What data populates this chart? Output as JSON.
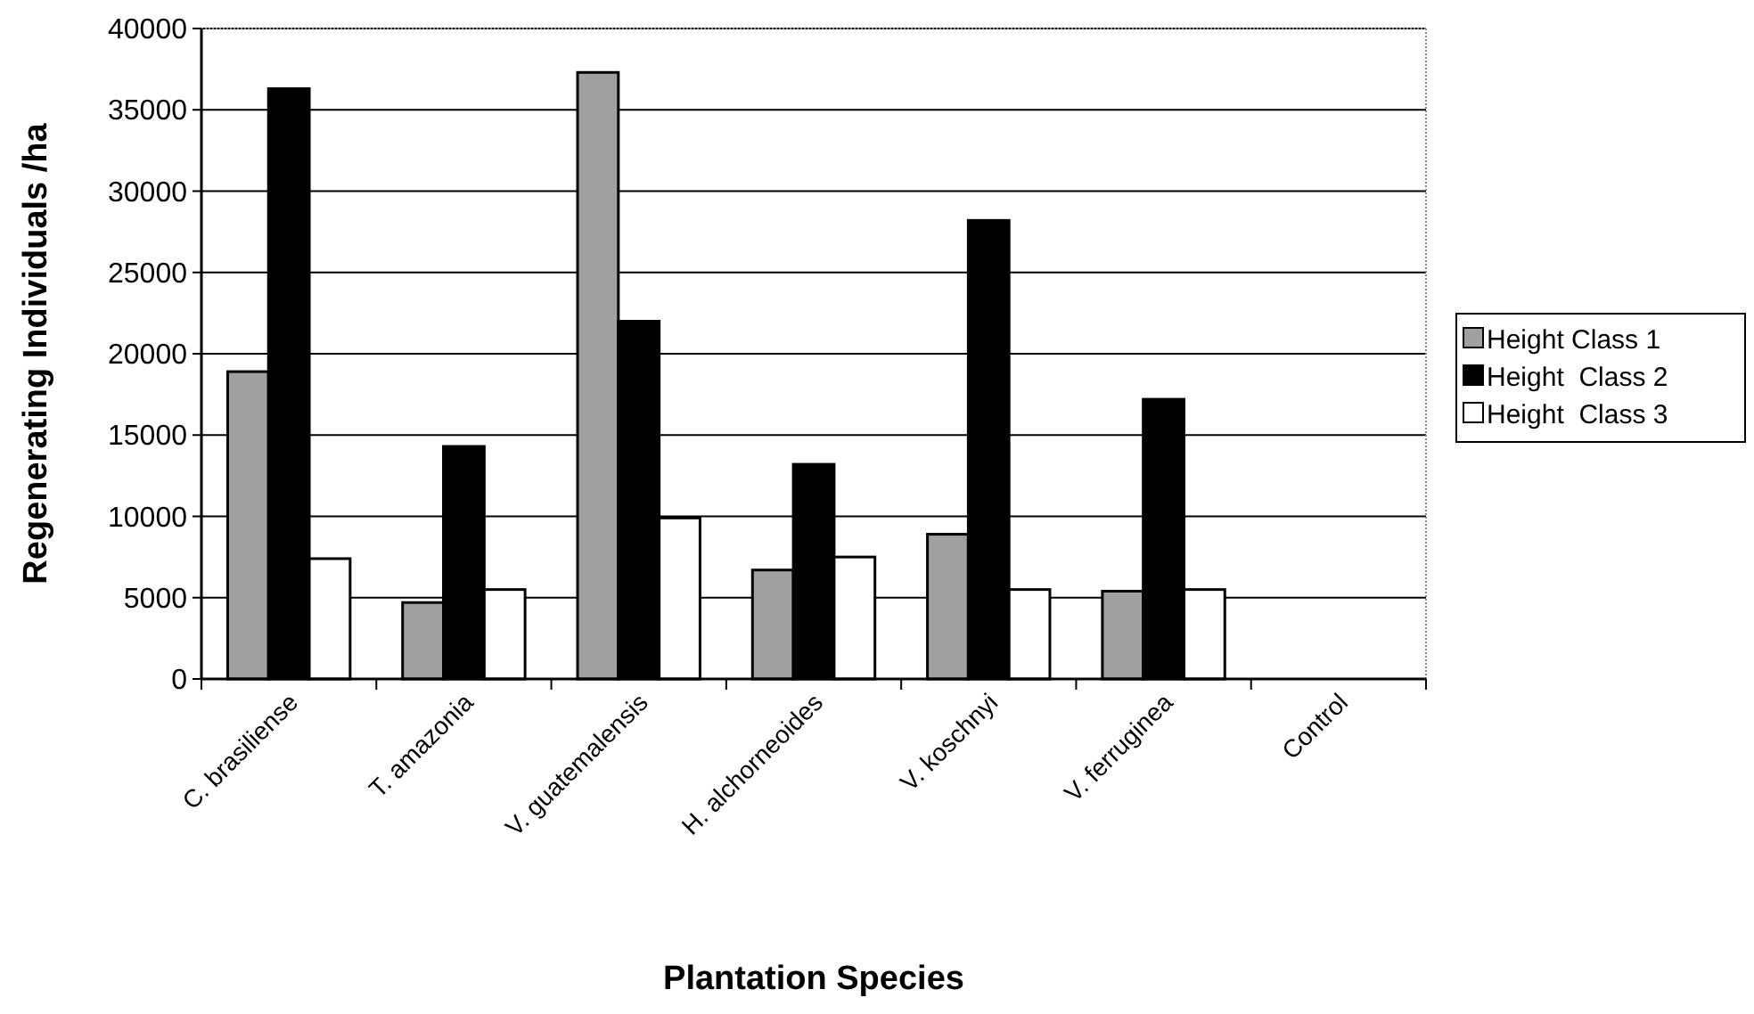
{
  "chart_data": {
    "type": "bar",
    "xlabel": "Plantation Species",
    "ylabel": "Regenerating Individuals /ha",
    "categories": [
      "C. brasiliense",
      "T. amazonia",
      "V. guatemalensis",
      "H. alchorneoides",
      "V. koschnyi",
      "V. ferruginea",
      "Control"
    ],
    "series": [
      {
        "name": "Height Class 1",
        "color": "#a0a0a0",
        "values": [
          18900,
          4700,
          37300,
          6700,
          8900,
          5400,
          0
        ]
      },
      {
        "name": "Height  Class 2",
        "color": "#000000",
        "values": [
          36300,
          14300,
          22000,
          13200,
          28200,
          17200,
          0
        ]
      },
      {
        "name": "Height  Class 3",
        "color": "#ffffff",
        "values": [
          7400,
          5500,
          9900,
          7500,
          5500,
          5500,
          0
        ]
      }
    ],
    "ylim": [
      0,
      40000
    ],
    "yticks": [
      0,
      5000,
      10000,
      15000,
      20000,
      25000,
      30000,
      35000,
      40000
    ],
    "grid": "y",
    "legend": "right"
  }
}
